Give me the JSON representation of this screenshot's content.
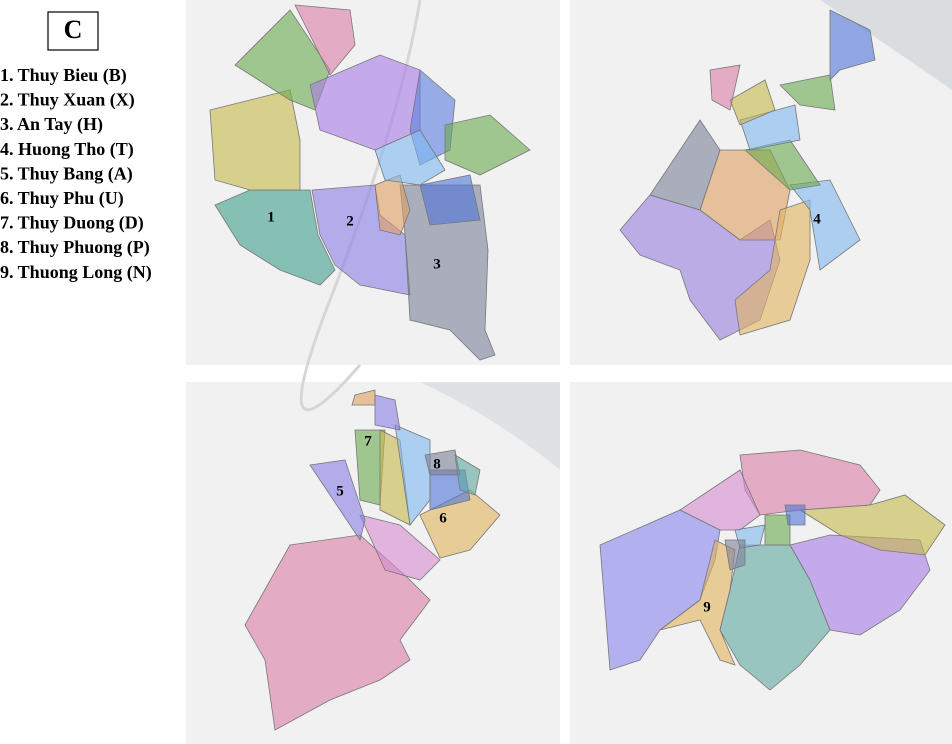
{
  "panel_label": "C",
  "legend": [
    "1. Thuy Bieu (B)",
    "2. Thuy Xuan (X)",
    "3. An Tay (H)",
    "4. Huong Tho (T)",
    "5. Thuy Bang (A)",
    "6. Thuy Phu (U)",
    "7. Thuy Duong (D)",
    "8. Thuy Phuong (P)",
    "9. Thuong Long (N)"
  ],
  "maps": [
    {
      "labels": [
        "1",
        "2",
        "3"
      ]
    },
    {
      "labels": [
        "4"
      ]
    },
    {
      "labels": [
        "5",
        "6",
        "7",
        "8"
      ]
    },
    {
      "labels": [
        "9"
      ]
    }
  ]
}
